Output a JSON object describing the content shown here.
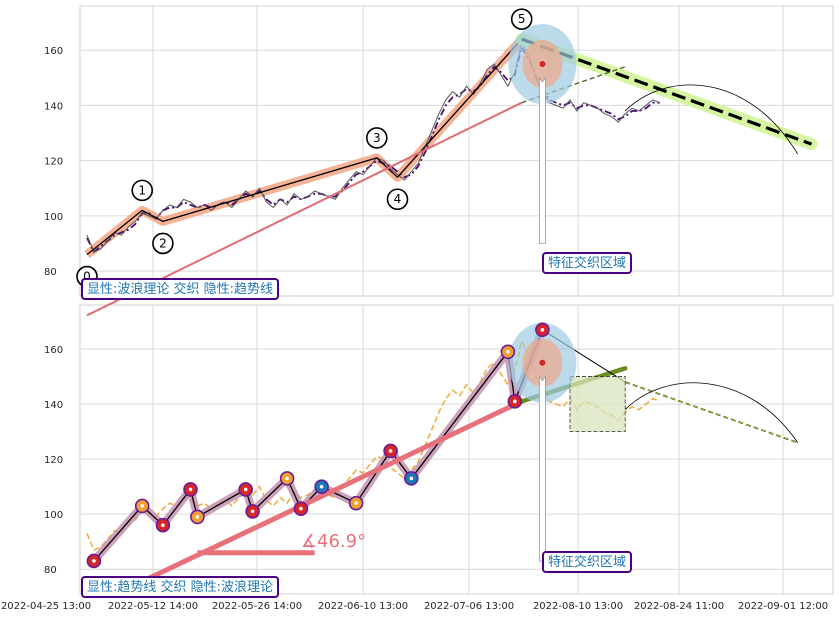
{
  "chart_data": [
    {
      "type": "line",
      "panel": "top",
      "title": "",
      "xlabel": "",
      "ylabel": "",
      "ylim": [
        71,
        176
      ],
      "yticks": [
        80,
        100,
        120,
        140,
        160
      ],
      "grid": true,
      "x_tick_labels": [
        "2022-04-25 13:00",
        "2022-05-12 14:00",
        "2022-05-26 14:00",
        "2022-06-10 13:00",
        "2022-07-06 13:00",
        "2022-08-10 13:00",
        "2022-08-24 11:00",
        "2022-09-01 12:00"
      ],
      "wave_points": [
        {
          "label": "0",
          "i": 0,
          "y": 86
        },
        {
          "label": "1",
          "i": 8,
          "y": 102
        },
        {
          "label": "2",
          "i": 11,
          "y": 98
        },
        {
          "label": "3",
          "i": 42,
          "y": 121
        },
        {
          "label": "4",
          "i": 45,
          "y": 114
        },
        {
          "label": "5",
          "i": 63,
          "y": 164
        }
      ],
      "series": [
        {
          "values": [
            93,
            87,
            88,
            91,
            94,
            93,
            96,
            98,
            101,
            100,
            99,
            102,
            104,
            103,
            106,
            105,
            103,
            104,
            102,
            104,
            105,
            103,
            106,
            109,
            107,
            110,
            105,
            103,
            106,
            104,
            108,
            106,
            107,
            109,
            108,
            107,
            106,
            110,
            113,
            116,
            115,
            118,
            121,
            120,
            117,
            115,
            113,
            116,
            119,
            125,
            131,
            137,
            142,
            145,
            143,
            147,
            144,
            148,
            153,
            155,
            151,
            147,
            152,
            163,
            158,
            150,
            145,
            141,
            140,
            139,
            142,
            138,
            141,
            140,
            139,
            137,
            136,
            134,
            137,
            139,
            138,
            140,
            142,
            141
          ]
        },
        {
          "values": [
            92,
            87,
            89,
            91,
            93,
            94,
            95,
            97,
            101,
            101,
            99,
            102,
            103,
            103,
            105,
            104,
            103,
            104,
            103,
            104,
            105,
            104,
            106,
            108,
            107,
            109,
            106,
            104,
            106,
            105,
            107,
            106,
            107,
            108,
            108,
            107,
            107,
            109,
            112,
            115,
            116,
            118,
            120,
            119,
            118,
            116,
            114,
            115,
            118,
            123,
            129,
            135,
            140,
            143,
            144,
            146,
            145,
            147,
            151,
            154,
            152,
            149,
            151,
            161,
            157,
            151,
            146,
            142,
            141,
            140,
            141,
            139,
            140,
            140,
            139,
            138,
            137,
            135,
            136,
            138,
            138,
            139,
            141,
            141
          ]
        }
      ],
      "trend_lines": [
        {
          "name": "upper-trend",
          "from": {
            "i": 0,
            "y": 64
          },
          "to": {
            "i": 63,
            "y": 141
          }
        },
        {
          "name": "down-trend",
          "from": {
            "i": 63,
            "y": 164
          },
          "to": {
            "i": 105,
            "y": 126
          }
        },
        {
          "name": "forecast-up",
          "from": {
            "i": 63,
            "y": 141
          },
          "to": {
            "i": 78,
            "y": 154
          }
        }
      ],
      "annotation_box": "显性:波浪理论 交织 隐性:趋势线",
      "zone_label": "特征交织区域"
    },
    {
      "type": "line",
      "panel": "bottom",
      "title": "",
      "xlabel": "",
      "ylabel": "",
      "ylim": [
        71,
        176
      ],
      "yticks": [
        80,
        100,
        120,
        140,
        160
      ],
      "grid": true,
      "x_tick_labels": [
        "2022-04-25 13:00",
        "2022-05-12 14:00",
        "2022-05-26 14:00",
        "2022-06-10 13:00",
        "2022-07-06 13:00",
        "2022-08-10 13:00",
        "2022-08-24 11:00",
        "2022-09-01 12:00"
      ],
      "angle_label": "∡46.9°",
      "annotation_box": "显性:趋势线 交织 隐性:波浪理论",
      "zone_label": "特征交织区域",
      "series": [
        {
          "values": [
            93,
            87,
            88,
            91,
            94,
            93,
            96,
            98,
            101,
            100,
            99,
            102,
            104,
            103,
            106,
            105,
            103,
            104,
            102,
            104,
            105,
            103,
            106,
            109,
            107,
            110,
            105,
            103,
            106,
            104,
            108,
            106,
            107,
            109,
            108,
            107,
            106,
            110,
            113,
            116,
            115,
            118,
            121,
            120,
            117,
            115,
            113,
            116,
            119,
            125,
            131,
            137,
            142,
            145,
            143,
            147,
            144,
            148,
            153,
            155,
            151,
            147,
            152,
            163,
            158,
            150,
            145,
            141,
            140,
            139,
            142,
            138,
            141,
            140,
            139,
            137,
            136,
            134,
            137,
            139,
            138,
            140,
            142,
            141
          ]
        }
      ],
      "pivots": [
        {
          "i": 1,
          "y": 83,
          "kind": "low"
        },
        {
          "i": 8,
          "y": 103,
          "kind": "high"
        },
        {
          "i": 11,
          "y": 96,
          "kind": "low"
        },
        {
          "i": 15,
          "y": 109,
          "kind": "high"
        },
        {
          "i": 16,
          "y": 99,
          "kind": "low"
        },
        {
          "i": 23,
          "y": 109,
          "kind": "high"
        },
        {
          "i": 24,
          "y": 101,
          "kind": "low"
        },
        {
          "i": 29,
          "y": 113,
          "kind": "high"
        },
        {
          "i": 31,
          "y": 102,
          "kind": "low"
        },
        {
          "i": 34,
          "y": 110,
          "kind": "high"
        },
        {
          "i": 39,
          "y": 104,
          "kind": "low"
        },
        {
          "i": 44,
          "y": 123,
          "kind": "high"
        },
        {
          "i": 47,
          "y": 113,
          "kind": "low"
        },
        {
          "i": 61,
          "y": 159,
          "kind": "high"
        },
        {
          "i": 62,
          "y": 141,
          "kind": "low"
        },
        {
          "i": 66,
          "y": 167,
          "kind": "high"
        }
      ]
    }
  ]
}
